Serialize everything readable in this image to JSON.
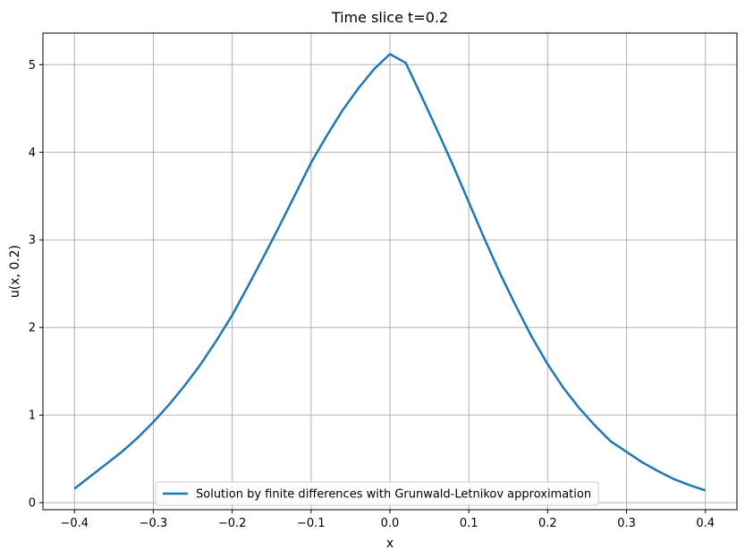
{
  "chart_data": {
    "type": "line",
    "title": "Time slice t=0.2",
    "xlabel": "x",
    "ylabel": "u(x, 0.2)",
    "xlim": [
      -0.44,
      0.44
    ],
    "ylim": [
      -0.08,
      5.36
    ],
    "xticks": [
      -0.4,
      -0.3,
      -0.2,
      -0.1,
      0.0,
      0.1,
      0.2,
      0.3,
      0.4
    ],
    "xtick_labels": [
      "−0.4",
      "−0.3",
      "−0.2",
      "−0.1",
      "0.0",
      "0.1",
      "0.2",
      "0.3",
      "0.4"
    ],
    "yticks": [
      0,
      1,
      2,
      3,
      4,
      5
    ],
    "ytick_labels": [
      "0",
      "1",
      "2",
      "3",
      "4",
      "5"
    ],
    "grid": true,
    "legend_position": "lower-center",
    "series": [
      {
        "name": "Solution by finite differences with Grunwald-Letnikov approximation",
        "color": "#1f77b4",
        "x": [
          -0.4,
          -0.38,
          -0.36,
          -0.34,
          -0.32,
          -0.3,
          -0.28,
          -0.26,
          -0.24,
          -0.22,
          -0.2,
          -0.18,
          -0.16,
          -0.14,
          -0.12,
          -0.1,
          -0.08,
          -0.06,
          -0.04,
          -0.02,
          0.0,
          0.02,
          0.04,
          0.06,
          0.08,
          0.1,
          0.12,
          0.14,
          0.16,
          0.18,
          0.2,
          0.22,
          0.24,
          0.26,
          0.28,
          0.3,
          0.32,
          0.34,
          0.36,
          0.38,
          0.4
        ],
        "y": [
          0.16,
          0.3,
          0.44,
          0.58,
          0.74,
          0.92,
          1.12,
          1.34,
          1.58,
          1.85,
          2.14,
          2.47,
          2.81,
          3.16,
          3.52,
          3.88,
          4.19,
          4.48,
          4.73,
          4.95,
          5.12,
          5.02,
          4.64,
          4.25,
          3.85,
          3.43,
          3.01,
          2.61,
          2.24,
          1.89,
          1.58,
          1.31,
          1.08,
          0.88,
          0.7,
          0.58,
          0.46,
          0.36,
          0.27,
          0.2,
          0.14
        ]
      }
    ]
  }
}
